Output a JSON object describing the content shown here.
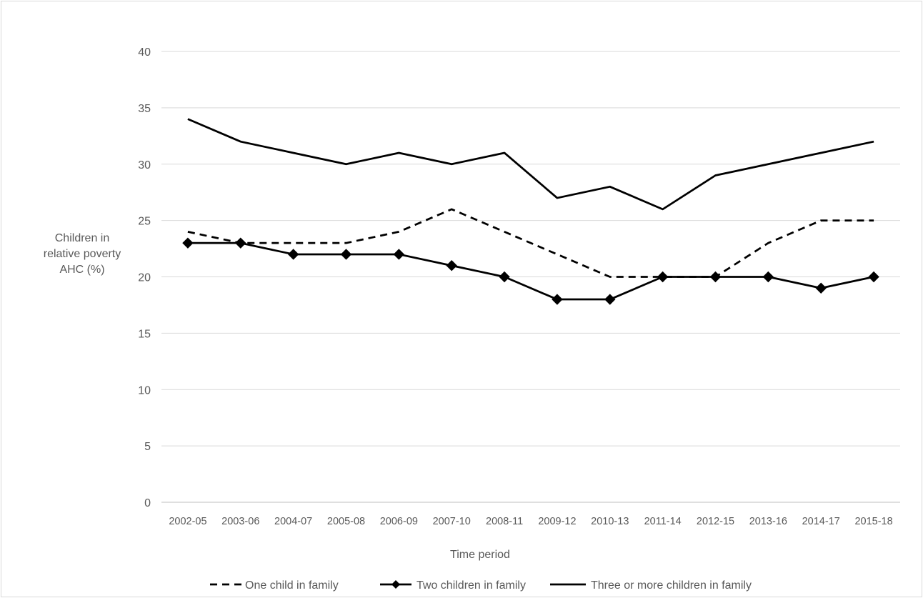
{
  "chart_data": {
    "type": "line",
    "title": "",
    "xlabel": "Time period",
    "ylabel_lines": [
      "Children in",
      "relative poverty",
      "AHC (%)"
    ],
    "ylim": [
      0,
      40
    ],
    "yticks": [
      0,
      5,
      10,
      15,
      20,
      25,
      30,
      35,
      40
    ],
    "grid": true,
    "legend_position": "bottom",
    "categories": [
      "2002-05",
      "2003-06",
      "2004-07",
      "2005-08",
      "2006-09",
      "2007-10",
      "2008-11",
      "2009-12",
      "2010-13",
      "2011-14",
      "2012-15",
      "2013-16",
      "2014-17",
      "2015-18"
    ],
    "series": [
      {
        "name": "One child in family",
        "style": "dashed",
        "marker": "none",
        "color": "#000000",
        "values": [
          24,
          23,
          23,
          23,
          24,
          26,
          24,
          22,
          20,
          20,
          20,
          23,
          25,
          25
        ]
      },
      {
        "name": "Two children in family",
        "style": "solid",
        "marker": "diamond",
        "color": "#000000",
        "values": [
          23,
          23,
          22,
          22,
          22,
          21,
          20,
          18,
          18,
          20,
          20,
          20,
          19,
          20
        ]
      },
      {
        "name": "Three or more children in family",
        "style": "solid",
        "marker": "none",
        "color": "#000000",
        "values": [
          34,
          32,
          31,
          30,
          31,
          30,
          31,
          27,
          28,
          26,
          29,
          30,
          31,
          32
        ]
      }
    ]
  }
}
